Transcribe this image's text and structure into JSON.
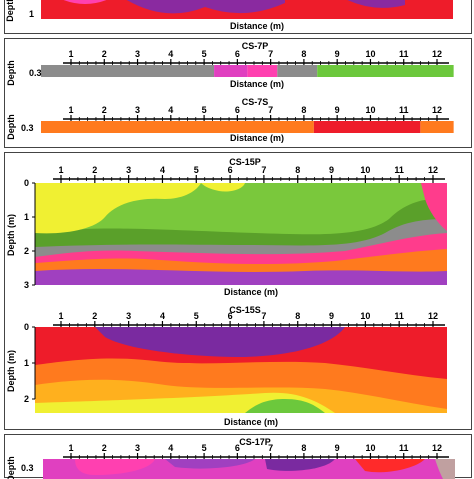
{
  "chart_data": [
    {
      "type": "heatmap",
      "title": "",
      "xlabel": "Distance (m)",
      "ylabel": "Depth",
      "y_ticks": [
        "1"
      ],
      "color_sequence": [
        "#ff2a2a",
        "#8a2aa0",
        "#ff2a2a"
      ]
    },
    {
      "type": "heatmap",
      "title": "CS-7P",
      "xlabel": "Distance (m)",
      "ylabel": "Depth",
      "x_ticks": [
        "1",
        "2",
        "3",
        "4",
        "5",
        "6",
        "7",
        "8",
        "9",
        "10",
        "11",
        "12"
      ],
      "y_ticks": [
        "0.3"
      ],
      "segments": [
        {
          "from": 0,
          "to": 5.3,
          "color": "#8c8c8c"
        },
        {
          "from": 5.3,
          "to": 6.3,
          "color": "#e040c0"
        },
        {
          "from": 6.3,
          "to": 7.2,
          "color": "#ff40b0"
        },
        {
          "from": 7.2,
          "to": 8.4,
          "color": "#8c8c8c"
        },
        {
          "from": 8.4,
          "to": 12.5,
          "color": "#6cc83c"
        }
      ]
    },
    {
      "type": "heatmap",
      "title": "CS-7S",
      "xlabel": "Distance (m)",
      "ylabel": "Depth",
      "x_ticks": [
        "1",
        "2",
        "3",
        "4",
        "5",
        "6",
        "7",
        "8",
        "9",
        "10",
        "11",
        "12"
      ],
      "y_ticks": [
        "0.3"
      ],
      "segments": [
        {
          "from": 0,
          "to": 8.3,
          "color": "#ff7a1e"
        },
        {
          "from": 8.3,
          "to": 11.5,
          "color": "#ee1c2a"
        },
        {
          "from": 11.5,
          "to": 12.5,
          "color": "#ff7a1e"
        }
      ]
    },
    {
      "type": "heatmap",
      "title": "CS-15P",
      "xlabel": "Distance (m)",
      "ylabel": "Depth (m)",
      "x_ticks": [
        "1",
        "2",
        "3",
        "4",
        "5",
        "6",
        "7",
        "8",
        "9",
        "10",
        "11",
        "12"
      ],
      "y_ticks": [
        "0",
        "1",
        "2",
        "3"
      ],
      "layers": [
        "#f0f032",
        "#7ac83c",
        "#5aa02a",
        "#8c8c8c",
        "#ff3c8c",
        "#ff7a1e",
        "#a040c0"
      ]
    },
    {
      "type": "heatmap",
      "title": "CS-15S",
      "xlabel": "Distance (m)",
      "ylabel": "Depth (m)",
      "x_ticks": [
        "1",
        "2",
        "3",
        "4",
        "5",
        "6",
        "7",
        "8",
        "9",
        "10",
        "11",
        "12"
      ],
      "y_ticks": [
        "0",
        "1",
        "2"
      ],
      "layers": [
        "#7a2aa0",
        "#ee1c2a",
        "#ff7a1e",
        "#ffb01e",
        "#f0f032",
        "#6cc83c"
      ]
    },
    {
      "type": "heatmap",
      "title": "CS-17P",
      "xlabel": "",
      "ylabel": "Depth",
      "x_ticks": [
        "1",
        "2",
        "3",
        "4",
        "5",
        "6",
        "7",
        "8",
        "9",
        "10",
        "11",
        "12"
      ],
      "y_ticks": [
        "0.3"
      ]
    }
  ],
  "labels": {
    "top_xlabel": "Distance (m)",
    "top_ylabel": "Depth",
    "top_ytick": "1",
    "p7_title": "CS-7P",
    "p7_xlabel": "Distance (m)",
    "p7_ylabel": "Depth",
    "p7_ytick": "0.3",
    "s7_title": "CS-7S",
    "s7_xlabel": "Distance (m)",
    "s7_ylabel": "Depth",
    "s7_ytick": "0.3",
    "p15_title": "CS-15P",
    "p15_xlabel": "Distance (m)",
    "p15_ylabel": "Depth (m)",
    "s15_title": "CS-15S",
    "s15_xlabel": "Distance (m)",
    "s15_ylabel": "Depth (m)",
    "p17_title": "CS-17P",
    "p17_ylabel": "Depth",
    "p17_ytick": "0.3"
  },
  "x_ticks": [
    "1",
    "2",
    "3",
    "4",
    "5",
    "6",
    "7",
    "8",
    "9",
    "10",
    "11",
    "12"
  ],
  "p15_yticks": [
    "0",
    "1",
    "2",
    "3"
  ],
  "s15_yticks": [
    "0",
    "1",
    "2"
  ]
}
